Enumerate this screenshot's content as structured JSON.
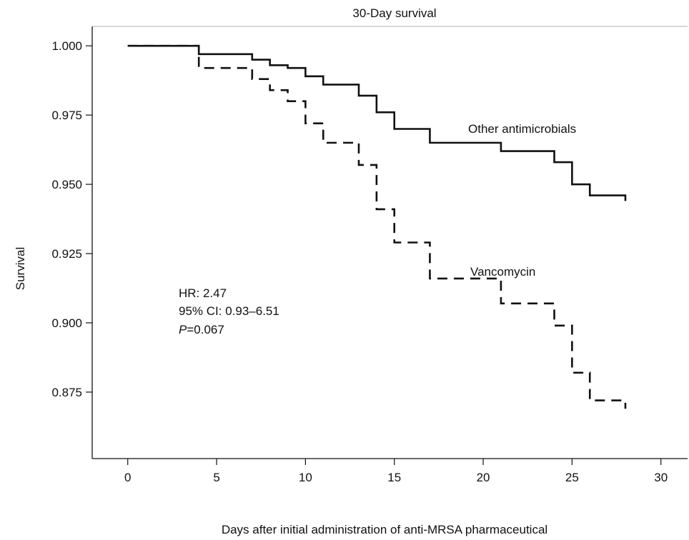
{
  "chart_data": {
    "type": "line",
    "subtype": "kaplan-meier step",
    "title": "30-Day survival",
    "xlabel": "Days after initial administration of anti-MRSA pharmaceutical",
    "ylabel": "Survival",
    "xlim": [
      -2,
      31.5
    ],
    "ylim": [
      0.851,
      1.007
    ],
    "x_ticks": [
      0,
      5,
      10,
      15,
      20,
      25,
      30
    ],
    "y_ticks": [
      1.0,
      0.975,
      0.95,
      0.925,
      0.9,
      0.875
    ],
    "y_tick_labels": [
      "1.000",
      "0.975",
      "0.950",
      "0.925",
      "0.900",
      "0.875"
    ],
    "grid": false,
    "legend": "none",
    "series": [
      {
        "name": "Other antimicrobials",
        "line_style": "solid",
        "color": "#111111",
        "x": [
          0,
          4,
          7,
          8,
          9,
          10,
          11,
          13,
          14,
          15,
          17,
          21,
          24,
          25,
          26,
          28
        ],
        "y": [
          1.0,
          0.997,
          0.995,
          0.993,
          0.992,
          0.989,
          0.986,
          0.982,
          0.976,
          0.97,
          0.965,
          0.962,
          0.958,
          0.95,
          0.946,
          0.944
        ]
      },
      {
        "name": "Vancomycin",
        "line_style": "dashed",
        "color": "#111111",
        "x": [
          0,
          4,
          7,
          8,
          9,
          10,
          11,
          13,
          14,
          15,
          17,
          21,
          24,
          25,
          26,
          28
        ],
        "y": [
          1.0,
          0.992,
          0.988,
          0.984,
          0.98,
          0.972,
          0.965,
          0.957,
          0.941,
          0.929,
          0.916,
          0.907,
          0.899,
          0.882,
          0.872,
          0.869
        ]
      }
    ],
    "annotations": {
      "hr": "HR: 2.47",
      "ci": "95% CI: 0.93–6.51",
      "p_italic": "P",
      "p_value": "=0.067"
    }
  }
}
